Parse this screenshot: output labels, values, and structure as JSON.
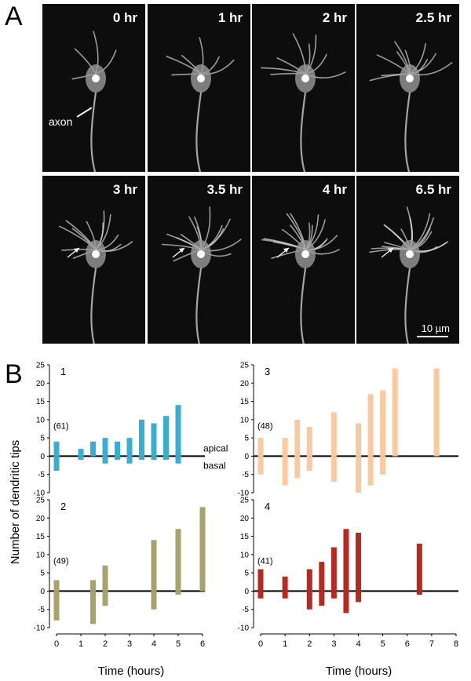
{
  "panel_a": {
    "letter": "A",
    "frames": [
      {
        "time": "0 hr"
      },
      {
        "time": "1 hr"
      },
      {
        "time": "2 hr"
      },
      {
        "time": "2.5 hr"
      },
      {
        "time": "3 hr"
      },
      {
        "time": "3.5 hr"
      },
      {
        "time": "4 hr"
      },
      {
        "time": "6.5 hr"
      }
    ],
    "axon_label": "axon",
    "scale_bar": "10 µm"
  },
  "panel_b": {
    "letter": "B",
    "ylabel": "Number of dendritic tips",
    "apical_label": "apical",
    "basal_label": "basal",
    "xlabel": "Time (hours)"
  },
  "chart_data": [
    {
      "type": "bar",
      "panel": "1",
      "annotation": "(61)",
      "color": "#3aaed0",
      "ylim": [
        -10,
        25
      ],
      "yticks": [
        -10,
        -5,
        0,
        5,
        10,
        15,
        20,
        25
      ],
      "xlim": [
        0,
        6
      ],
      "xticks": [
        0,
        1,
        2,
        3,
        4,
        5,
        6
      ],
      "x": [
        0,
        1,
        1.5,
        2,
        2.5,
        3,
        3.5,
        4,
        4.5,
        5
      ],
      "apical": [
        4,
        2,
        4,
        5,
        4,
        5,
        10,
        9,
        11,
        14
      ],
      "basal": [
        -4,
        -1,
        0,
        -2,
        -1,
        -2,
        -1,
        -1,
        -1,
        -2
      ]
    },
    {
      "type": "bar",
      "panel": "2",
      "annotation": "(49)",
      "color": "#a7a36a",
      "ylim": [
        -10,
        25
      ],
      "yticks": [
        -10,
        -5,
        0,
        5,
        10,
        15,
        20,
        25
      ],
      "xlim": [
        0,
        6
      ],
      "xticks": [
        0,
        1,
        2,
        3,
        4,
        5,
        6
      ],
      "x": [
        0,
        1.5,
        2,
        4,
        5,
        6
      ],
      "apical": [
        3,
        3,
        7,
        14,
        17,
        23
      ],
      "basal": [
        -8,
        -9,
        -4,
        -5,
        -1,
        0
      ]
    },
    {
      "type": "bar",
      "panel": "3",
      "annotation": "(48)",
      "color": "#f9c9a0",
      "ylim": [
        -10,
        25
      ],
      "yticks": [
        -10,
        -5,
        0,
        5,
        10,
        15,
        20,
        25
      ],
      "xlim": [
        0,
        8
      ],
      "xticks": [
        0,
        1,
        2,
        3,
        4,
        5,
        6,
        7,
        8
      ],
      "x": [
        0,
        1,
        1.5,
        2,
        3,
        4,
        4.5,
        5,
        5.5,
        7.2
      ],
      "apical": [
        5,
        5,
        10,
        8,
        12,
        9,
        17,
        18,
        24,
        24
      ],
      "basal": [
        -5,
        -8,
        -6,
        -4,
        -7,
        -10,
        -8,
        -5,
        0,
        0
      ]
    },
    {
      "type": "bar",
      "panel": "4",
      "annotation": "(41)",
      "color": "#b62a22",
      "ylim": [
        -10,
        25
      ],
      "yticks": [
        -10,
        -5,
        0,
        5,
        10,
        15,
        20,
        25
      ],
      "xlim": [
        0,
        8
      ],
      "xticks": [
        0,
        1,
        2,
        3,
        4,
        5,
        6,
        7,
        8
      ],
      "x": [
        0,
        1,
        2,
        2.5,
        3,
        3.5,
        4,
        6.5
      ],
      "apical": [
        6,
        4,
        6,
        8,
        12,
        17,
        16,
        13
      ],
      "basal": [
        -2,
        -2,
        -5,
        -4,
        -2,
        -6,
        -3,
        -1
      ]
    }
  ]
}
